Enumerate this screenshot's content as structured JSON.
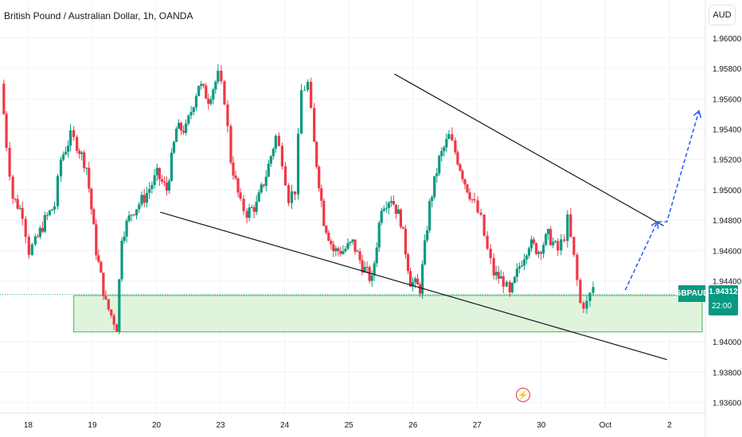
{
  "title": "British Pound / Australian Dollar, 1h, OANDA",
  "currency_button": "AUD",
  "symbol_label": "GBPAUD",
  "current_price": "1.94312",
  "countdown": "22:00",
  "event_icon": "flash-icon",
  "colors": {
    "up": "#089981",
    "down": "#f23645",
    "zone_fill": "#d6f0d2",
    "zone_border": "#4caf50",
    "trendline": "#131722",
    "arrow": "#2962ff"
  },
  "chart_data": {
    "type": "candlestick",
    "symbol": "GBPAUD",
    "timeframe": "1h",
    "y_ticks": [
      "1.96000",
      "1.95800",
      "1.95600",
      "1.95400",
      "1.95200",
      "1.95000",
      "1.94800",
      "1.94600",
      "1.94400",
      "1.94000",
      "1.93800",
      "1.93600"
    ],
    "x_ticks": [
      "18",
      "19",
      "20",
      "23",
      "24",
      "25",
      "26",
      "27",
      "30",
      "Oct",
      "2"
    ],
    "ylim": [
      1.9353,
      1.9625
    ],
    "x_range": [
      17.6,
      28.6
    ],
    "close_path": [
      {
        "x": 17.62,
        "y": 1.957
      },
      {
        "x": 17.7,
        "y": 1.953
      },
      {
        "x": 17.8,
        "y": 1.9495
      },
      {
        "x": 17.95,
        "y": 1.9485
      },
      {
        "x": 18.05,
        "y": 1.946
      },
      {
        "x": 18.15,
        "y": 1.9465
      },
      {
        "x": 18.3,
        "y": 1.948
      },
      {
        "x": 18.45,
        "y": 1.949
      },
      {
        "x": 18.55,
        "y": 1.952
      },
      {
        "x": 18.7,
        "y": 1.9535
      },
      {
        "x": 18.8,
        "y": 1.953
      },
      {
        "x": 18.95,
        "y": 1.9515
      },
      {
        "x": 19.1,
        "y": 1.946
      },
      {
        "x": 19.25,
        "y": 1.9425
      },
      {
        "x": 19.42,
        "y": 1.941
      },
      {
        "x": 19.5,
        "y": 1.947
      },
      {
        "x": 19.65,
        "y": 1.9485
      },
      {
        "x": 19.85,
        "y": 1.9495
      },
      {
        "x": 20.05,
        "y": 1.951
      },
      {
        "x": 20.2,
        "y": 1.95
      },
      {
        "x": 20.35,
        "y": 1.954
      },
      {
        "x": 20.5,
        "y": 1.954
      },
      {
        "x": 20.7,
        "y": 1.957
      },
      {
        "x": 20.85,
        "y": 1.956
      },
      {
        "x": 21.0,
        "y": 1.9575
      },
      {
        "x": 21.1,
        "y": 1.956
      },
      {
        "x": 21.2,
        "y": 1.952
      },
      {
        "x": 21.35,
        "y": 1.949
      },
      {
        "x": 21.45,
        "y": 1.9485
      },
      {
        "x": 21.6,
        "y": 1.949
      },
      {
        "x": 21.75,
        "y": 1.951
      },
      {
        "x": 21.9,
        "y": 1.9535
      },
      {
        "x": 22.0,
        "y": 1.952
      },
      {
        "x": 22.1,
        "y": 1.9495
      },
      {
        "x": 22.2,
        "y": 1.95
      },
      {
        "x": 22.3,
        "y": 1.9565
      },
      {
        "x": 22.4,
        "y": 1.957
      },
      {
        "x": 22.5,
        "y": 1.953
      },
      {
        "x": 22.65,
        "y": 1.948
      },
      {
        "x": 22.8,
        "y": 1.946
      },
      {
        "x": 22.95,
        "y": 1.946
      },
      {
        "x": 23.1,
        "y": 1.9465
      },
      {
        "x": 23.25,
        "y": 1.945
      },
      {
        "x": 23.4,
        "y": 1.944
      },
      {
        "x": 23.55,
        "y": 1.949
      },
      {
        "x": 23.7,
        "y": 1.9495
      },
      {
        "x": 23.85,
        "y": 1.948
      },
      {
        "x": 24.0,
        "y": 1.944
      },
      {
        "x": 24.15,
        "y": 1.9435
      },
      {
        "x": 24.3,
        "y": 1.949
      },
      {
        "x": 24.45,
        "y": 1.952
      },
      {
        "x": 24.6,
        "y": 1.9535
      },
      {
        "x": 24.7,
        "y": 1.9525
      },
      {
        "x": 24.85,
        "y": 1.9505
      },
      {
        "x": 25.0,
        "y": 1.949
      },
      {
        "x": 25.1,
        "y": 1.948
      },
      {
        "x": 25.2,
        "y": 1.946
      },
      {
        "x": 25.3,
        "y": 1.9445
      },
      {
        "x": 25.45,
        "y": 1.944
      },
      {
        "x": 25.55,
        "y": 1.943
      },
      {
        "x": 25.7,
        "y": 1.945
      },
      {
        "x": 25.85,
        "y": 1.9465
      },
      {
        "x": 26.0,
        "y": 1.946
      },
      {
        "x": 26.15,
        "y": 1.947
      },
      {
        "x": 26.3,
        "y": 1.946
      },
      {
        "x": 26.4,
        "y": 1.947
      },
      {
        "x": 26.45,
        "y": 1.948
      },
      {
        "x": 26.55,
        "y": 1.9455
      },
      {
        "x": 26.65,
        "y": 1.9425
      },
      {
        "x": 26.75,
        "y": 1.9425
      },
      {
        "x": 26.85,
        "y": 1.9436
      }
    ],
    "demand_zone": {
      "x0": 18.75,
      "x1": 28.55,
      "y_low": 1.94065,
      "y_high": 1.94305
    },
    "current_price_line": 1.94312,
    "trendlines": [
      {
        "x0": 23.75,
        "y0": 1.95763,
        "x1": 27.95,
        "y1": 1.94763
      },
      {
        "x0": 20.1,
        "y0": 1.94853,
        "x1": 28.0,
        "y1": 1.93883
      }
    ],
    "projection": [
      {
        "x": 27.35,
        "y": 1.9434
      },
      {
        "x": 27.85,
        "y": 1.9479
      },
      {
        "x": 28.0,
        "y": 1.9479
      },
      {
        "x": 28.5,
        "y": 1.9552
      }
    ]
  }
}
